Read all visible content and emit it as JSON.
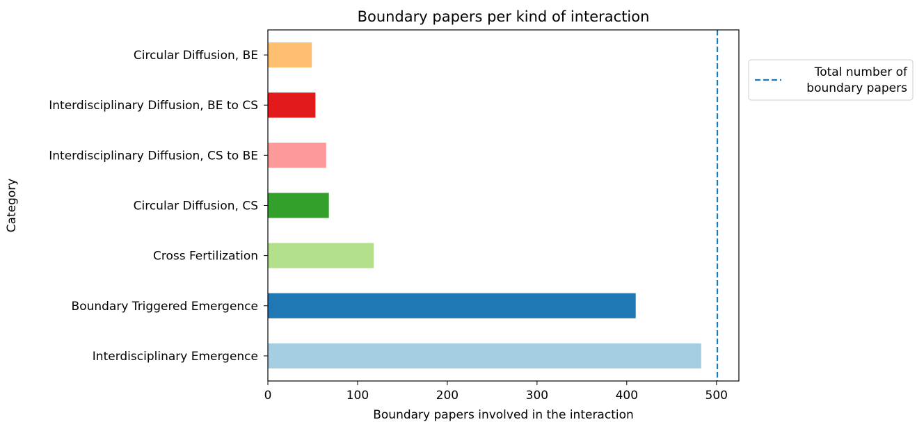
{
  "chart_data": {
    "type": "bar",
    "orientation": "horizontal",
    "title": "Boundary papers per kind of interaction",
    "xlabel": "Boundary papers involved in the interaction",
    "ylabel": "Category",
    "xlim": [
      0,
      525
    ],
    "xticks": [
      0,
      100,
      200,
      300,
      400,
      500
    ],
    "categories": [
      "Interdisciplinary Emergence",
      "Boundary Triggered Emergence",
      "Cross Fertilization",
      "Circular Diffusion, CS",
      "Interdisciplinary Diffusion, CS to BE",
      "Interdisciplinary Diffusion, BE to CS",
      "Circular Diffusion, BE"
    ],
    "values": [
      483,
      410,
      118,
      68,
      65,
      53,
      49
    ],
    "colors": [
      "#a6cee3",
      "#1f78b4",
      "#b2df8a",
      "#33a02c",
      "#fb9a99",
      "#e31a1c",
      "#fdbf6f"
    ],
    "reference_line": {
      "value": 501,
      "style": "dashed",
      "color": "#1f77b4",
      "legend_label": "Total number of\n boundary papers"
    },
    "legend": {
      "placement": "outside-right-top",
      "entries": [
        "Total number of\n boundary papers"
      ]
    },
    "grid": false
  }
}
